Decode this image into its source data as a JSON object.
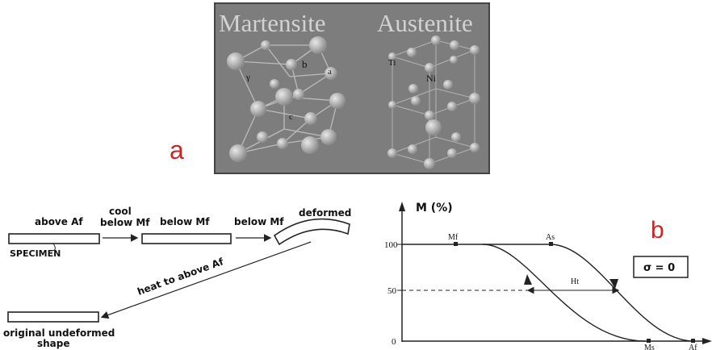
{
  "panel_a": {
    "label": "a",
    "martensite_title": "Martensite",
    "austenite_title": "Austenite",
    "martensite_labels": [
      "γ",
      "b",
      "a",
      "c"
    ],
    "austenite_labels": [
      "Ti",
      "Ni"
    ],
    "colors": {
      "photo_bg": "#7d7d7d",
      "label": "#c62828"
    }
  },
  "process": {
    "above_af_1": "above Af",
    "cool": "cool",
    "below_mf_1": "below Mf",
    "below_mf_2": "below Mf",
    "below_mf_3": "below Mf",
    "deformed": "deformed",
    "specimen": "SPECIMEN",
    "heat": "heat to above Af",
    "original_1": "original undeformed",
    "original_2": "shape"
  },
  "chart": {
    "label": "b",
    "y_title": "M (%)",
    "sigma": "σ = 0",
    "y_ticks": [
      "100",
      "50",
      "0"
    ],
    "points": [
      "Mf",
      "As",
      "Ms",
      "Af"
    ],
    "hysteresis": "Ht"
  }
}
